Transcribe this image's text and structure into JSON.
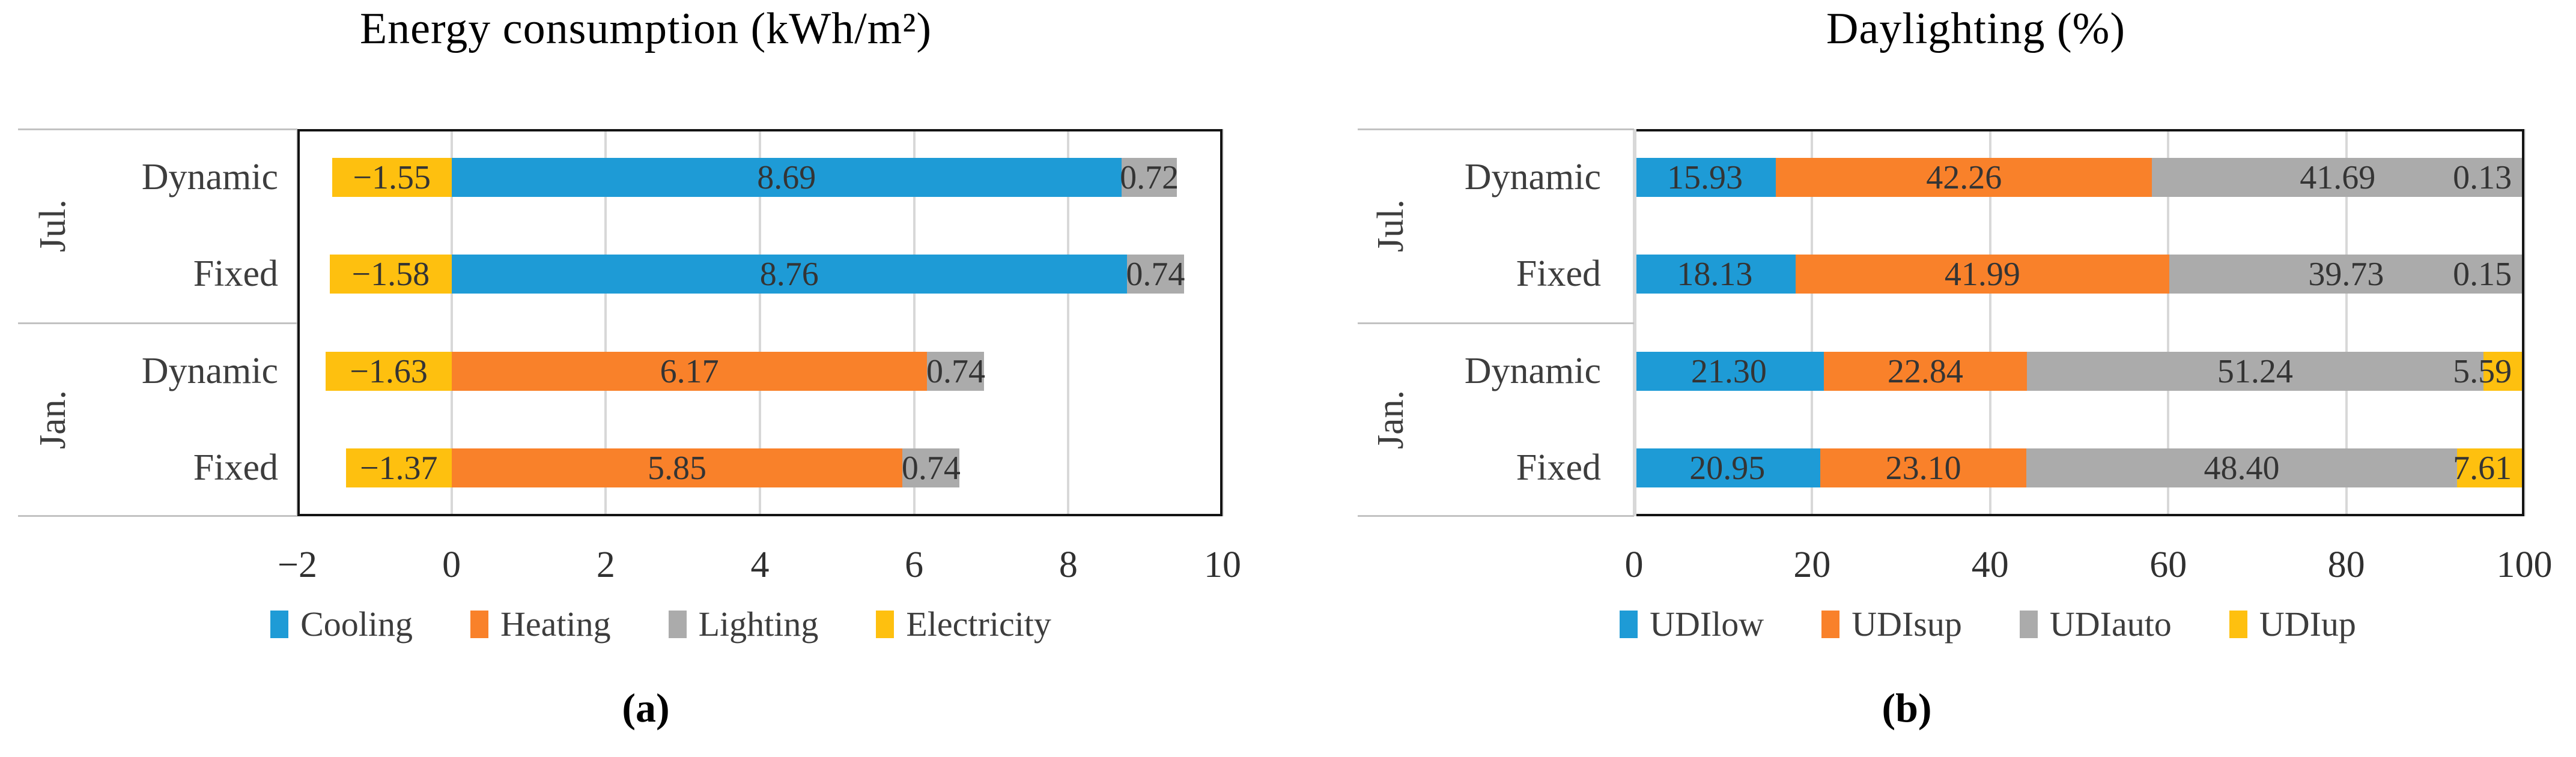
{
  "colors": {
    "cooling_blue": "#1E9BD6",
    "heating_orange": "#F9812A",
    "lighting_gray": "#ABABAB",
    "electricity_yellow": "#FEC00F",
    "gridline": "#D8D8D8",
    "separator": "#C2C2C2",
    "plot_border": "#141414",
    "label_text": "#343434"
  },
  "chart_data": [
    {
      "id": "energy",
      "type": "bar",
      "orientation": "horizontal-stacked",
      "title": "Energy consumption (kWh/m²)",
      "caption": "(a)",
      "axis": {
        "min": -2,
        "max": 10,
        "ticks": [
          -2,
          0,
          2,
          4,
          6,
          8,
          10
        ],
        "tick_labels": [
          "−2",
          "0",
          "2",
          "4",
          "6",
          "8",
          "10"
        ],
        "grid": true
      },
      "legend_position": "bottom",
      "legend": [
        {
          "name": "Cooling",
          "color": "#1E9BD6"
        },
        {
          "name": "Heating",
          "color": "#F9812A"
        },
        {
          "name": "Lighting",
          "color": "#ABABAB"
        },
        {
          "name": "Electricity",
          "color": "#FEC00F"
        }
      ],
      "groups": [
        {
          "label": "Jul.",
          "start": 0,
          "span": 2
        },
        {
          "label": "Jan.",
          "start": 2,
          "span": 2
        }
      ],
      "rows": [
        {
          "group": "Jul.",
          "label": "Dynamic",
          "segments": [
            {
              "series": "Electricity",
              "value": -1.55,
              "label": "−1.55"
            },
            {
              "series": "Cooling",
              "value": 8.69,
              "label": "8.69"
            },
            {
              "series": "Lighting",
              "value": 0.72,
              "label": "0.72"
            }
          ]
        },
        {
          "group": "Jul.",
          "label": "Fixed",
          "segments": [
            {
              "series": "Electricity",
              "value": -1.58,
              "label": "−1.58"
            },
            {
              "series": "Cooling",
              "value": 8.76,
              "label": "8.76"
            },
            {
              "series": "Lighting",
              "value": 0.74,
              "label": "0.74"
            }
          ]
        },
        {
          "group": "Jan.",
          "label": "Dynamic",
          "segments": [
            {
              "series": "Electricity",
              "value": -1.63,
              "label": "−1.63"
            },
            {
              "series": "Heating",
              "value": 6.17,
              "label": "6.17"
            },
            {
              "series": "Lighting",
              "value": 0.74,
              "label": "0.74"
            }
          ]
        },
        {
          "group": "Jan.",
          "label": "Fixed",
          "segments": [
            {
              "series": "Electricity",
              "value": -1.37,
              "label": "−1.37"
            },
            {
              "series": "Heating",
              "value": 5.85,
              "label": "5.85"
            },
            {
              "series": "Lighting",
              "value": 0.74,
              "label": "0.74"
            }
          ]
        }
      ]
    },
    {
      "id": "daylighting",
      "type": "bar",
      "orientation": "horizontal-stacked",
      "title": "Daylighting (%)",
      "caption": "(b)",
      "axis": {
        "min": 0,
        "max": 100,
        "ticks": [
          0,
          20,
          40,
          60,
          80,
          100
        ],
        "tick_labels": [
          "0",
          "20",
          "40",
          "60",
          "80",
          "100"
        ],
        "grid": true
      },
      "legend_position": "bottom",
      "legend": [
        {
          "name": "UDIlow",
          "color": "#1E9BD6"
        },
        {
          "name": "UDIsup",
          "color": "#F9812A"
        },
        {
          "name": "UDIauto",
          "color": "#ABABAB"
        },
        {
          "name": "UDIup",
          "color": "#FEC00F"
        }
      ],
      "groups": [
        {
          "label": "Jul.",
          "start": 0,
          "span": 2
        },
        {
          "label": "Jan.",
          "start": 2,
          "span": 2
        }
      ],
      "rows": [
        {
          "group": "Jul.",
          "label": "Dynamic",
          "segments": [
            {
              "series": "UDIlow",
              "value": 15.93,
              "label": "15.93"
            },
            {
              "series": "UDIsup",
              "value": 42.26,
              "label": "42.26"
            },
            {
              "series": "UDIauto",
              "value": 41.69,
              "label": "41.69"
            },
            {
              "series": "UDIup",
              "value": 0.13,
              "label": "0.13"
            }
          ]
        },
        {
          "group": "Jul.",
          "label": "Fixed",
          "segments": [
            {
              "series": "UDIlow",
              "value": 18.13,
              "label": "18.13"
            },
            {
              "series": "UDIsup",
              "value": 41.99,
              "label": "41.99"
            },
            {
              "series": "UDIauto",
              "value": 39.73,
              "label": "39.73"
            },
            {
              "series": "UDIup",
              "value": 0.15,
              "label": "0.15"
            }
          ]
        },
        {
          "group": "Jan.",
          "label": "Dynamic",
          "segments": [
            {
              "series": "UDIlow",
              "value": 21.3,
              "label": "21.30"
            },
            {
              "series": "UDIsup",
              "value": 22.84,
              "label": "22.84"
            },
            {
              "series": "UDIauto",
              "value": 51.24,
              "label": "51.24"
            },
            {
              "series": "UDIup",
              "value": 5.59,
              "label": "5.59"
            }
          ]
        },
        {
          "group": "Jan.",
          "label": "Fixed",
          "segments": [
            {
              "series": "UDIlow",
              "value": 20.95,
              "label": "20.95"
            },
            {
              "series": "UDIsup",
              "value": 23.1,
              "label": "23.10"
            },
            {
              "series": "UDIauto",
              "value": 48.4,
              "label": "48.40"
            },
            {
              "series": "UDIup",
              "value": 7.61,
              "label": "7.61"
            }
          ]
        }
      ]
    }
  ]
}
